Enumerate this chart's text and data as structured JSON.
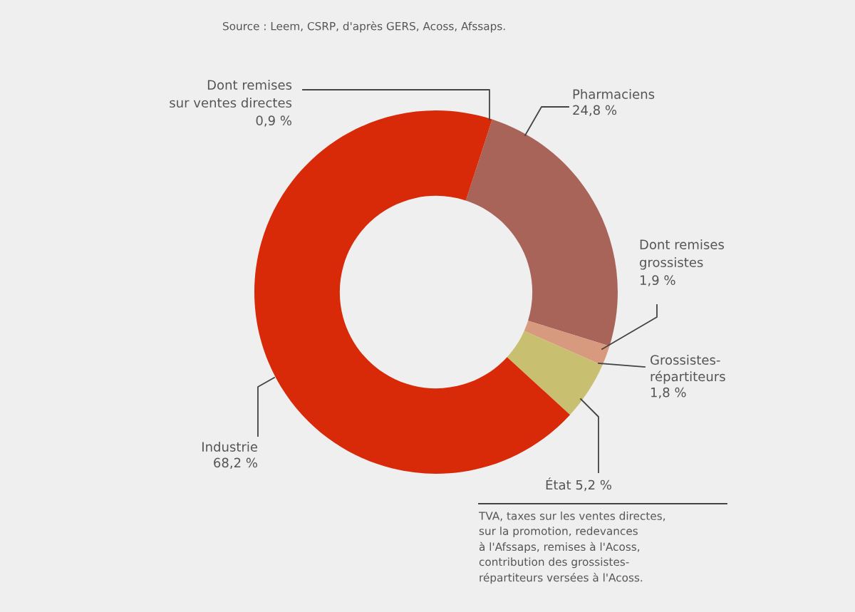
{
  "chart_data": {
    "type": "donut",
    "categories": [
      "Pharmaciens",
      "Grossistes-\nrépartiteurs",
      "État",
      "Industrie"
    ],
    "values": [
      24.8,
      1.8,
      5.2,
      68.2
    ],
    "colors": [
      "#a86458",
      "#d89a7e",
      "#c8c070",
      "#d82a08"
    ],
    "value_labels": [
      "24,8 %",
      "1,8 %",
      "5,2 %",
      "68,2 %"
    ],
    "annotations": [
      "Source : Leem, CSRP, d'après GERS, Acoss, Afssaps.",
      "Dont remises\nsur ventes directes\n0,9 %",
      "Dont remises\ngrossistes\n1,9 %",
      "TVA, taxes sur les ventes directes,\nsur la promotion, redevances\nà l'Afssaps, remises à l'Acoss,\ncontribution des grossistes-\nrépartiteurs versées à l'Acoss."
    ]
  }
}
